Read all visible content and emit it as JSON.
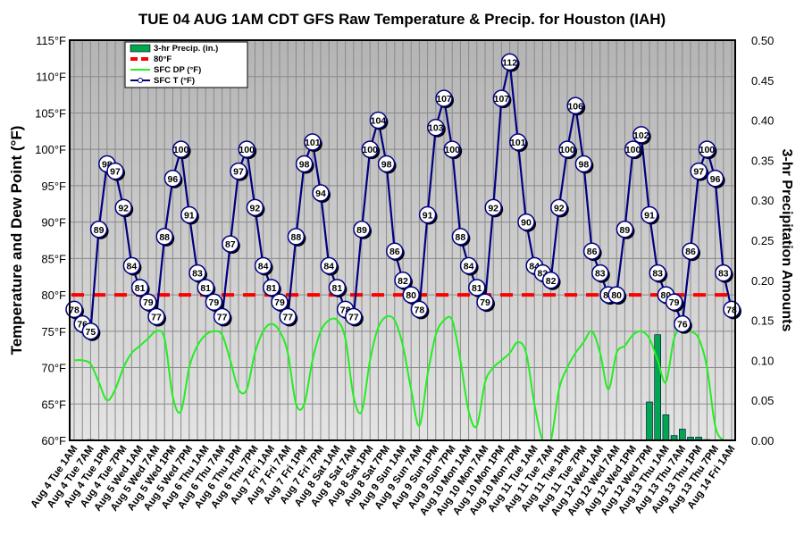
{
  "chart_data": {
    "type": "line",
    "title": "TUE 04 AUG 1AM CDT GFS Raw Temperature & Precip. for Houston (IAH)",
    "ylabel": "Temperature and Dew Point (°F)",
    "y2label": "3-hr Precipitation Amounts",
    "ylim": [
      60,
      115
    ],
    "y2lim": [
      0,
      0.5
    ],
    "yticks": [
      "60°F",
      "65°F",
      "70°F",
      "75°F",
      "80°F",
      "85°F",
      "90°F",
      "95°F",
      "100°F",
      "105°F",
      "110°F",
      "115°F"
    ],
    "y2ticks": [
      "0.00",
      "0.05",
      "0.10",
      "0.15",
      "0.20",
      "0.25",
      "0.30",
      "0.35",
      "0.40",
      "0.45",
      "0.50"
    ],
    "grid": true,
    "legend_position": "top-left",
    "legend": [
      "3-hr Precip. (in.)",
      "80°F",
      "SFC DP (°F)",
      "SFC T (°F)"
    ],
    "colors": {
      "precip": "#00a651",
      "ref": "#ff0000",
      "dew": "#00ff00",
      "temp": "#000080"
    },
    "reference_line": 80,
    "x_labels": [
      "Aug 4 Tue 1AM",
      "Aug 4 Tue 7AM",
      "Aug 4 Tue 1PM",
      "Aug 4 Tue 7PM",
      "Aug 5 Wed 1AM",
      "Aug 5 Wed 7AM",
      "Aug 5 Wed 1PM",
      "Aug 5 Wed 7PM",
      "Aug 6 Thu 1AM",
      "Aug 6 Thu 7AM",
      "Aug 6 Thu 1PM",
      "Aug 6 Thu 7PM",
      "Aug 7 Fri 1AM",
      "Aug 7 Fri 7AM",
      "Aug 7 Fri 1PM",
      "Aug 7 Fri 7PM",
      "Aug 8 Sat 1AM",
      "Aug 8 Sat 7AM",
      "Aug 8 Sat 1PM",
      "Aug 8 Sat 7PM",
      "Aug 9 Sun 1AM",
      "Aug 9 Sun 7AM",
      "Aug 9 Sun 1PM",
      "Aug 9 Sun 7PM",
      "Aug 10 Mon 1AM",
      "Aug 10 Mon 7AM",
      "Aug 10 Mon 1PM",
      "Aug 10 Mon 7PM",
      "Aug 11 Tue 1AM",
      "Aug 11 Tue 7AM",
      "Aug 11 Tue 1PM",
      "Aug 11 Tue 7PM",
      "Aug 12 Wed 1AM",
      "Aug 12 Wed 7AM",
      "Aug 12 Wed 1PM",
      "Aug 12 Wed 7PM",
      "Aug 13 Thu 1AM",
      "Aug 13 Thu 7AM",
      "Aug 13 Thu 1PM",
      "Aug 13 Thu 7PM",
      "Aug 14 Fri 1AM"
    ],
    "series": [
      {
        "name": "SFC T (°F)",
        "values": [
          78,
          76,
          75,
          89,
          98,
          97,
          92,
          84,
          81,
          79,
          77,
          88,
          96,
          100,
          91,
          83,
          81,
          79,
          77,
          87,
          97,
          100,
          92,
          84,
          81,
          79,
          77,
          88,
          98,
          101,
          94,
          84,
          81,
          78,
          77,
          89,
          100,
          104,
          98,
          86,
          82,
          80,
          78,
          91,
          103,
          107,
          100,
          88,
          84,
          81,
          79,
          92,
          107,
          112,
          101,
          90,
          84,
          83,
          82,
          92,
          100,
          106,
          98,
          86,
          83,
          80,
          80,
          89,
          100,
          102,
          91,
          83,
          80,
          79,
          76,
          86,
          97,
          100,
          96,
          83,
          78
        ]
      },
      {
        "name": "SFC DP (°F)",
        "values": [
          71,
          71,
          70.5,
          68,
          65.5,
          67,
          70,
          72,
          73,
          74,
          75,
          74,
          66,
          64,
          70,
          73,
          74.5,
          75,
          74.5,
          71,
          67,
          67,
          72,
          75,
          76,
          75,
          72,
          65,
          65,
          71,
          75,
          76.5,
          76.5,
          74,
          66,
          64,
          71,
          75.5,
          77,
          76.5,
          73,
          67,
          62,
          69,
          74.5,
          76.5,
          76.5,
          71,
          64,
          62,
          68,
          70,
          71,
          72,
          73.5,
          72,
          65,
          60,
          60,
          67,
          70,
          72,
          73.5,
          75,
          72,
          67,
          72,
          73,
          74.5,
          75,
          74,
          71,
          68,
          74,
          75.5,
          75,
          74,
          70,
          62,
          58,
          57
        ]
      },
      {
        "name": "3-hr Precip. (in.)",
        "values": [
          0,
          0,
          0.001,
          0,
          0,
          0,
          0,
          0,
          0,
          0,
          0,
          0,
          0,
          0,
          0,
          0,
          0,
          0,
          0,
          0,
          0,
          0,
          0,
          0,
          0,
          0,
          0,
          0,
          0,
          0,
          0,
          0,
          0,
          0,
          0,
          0,
          0,
          0,
          0,
          0,
          0,
          0,
          0,
          0,
          0,
          0,
          0,
          0,
          0,
          0,
          0,
          0,
          0,
          0,
          0,
          0,
          0,
          0,
          0,
          0,
          0,
          0,
          0,
          0,
          0,
          0,
          0,
          0,
          0,
          0,
          0.048,
          0.132,
          0.032,
          0.006,
          0.014,
          0.004,
          0.004,
          0.001,
          0,
          0,
          0
        ]
      }
    ]
  }
}
